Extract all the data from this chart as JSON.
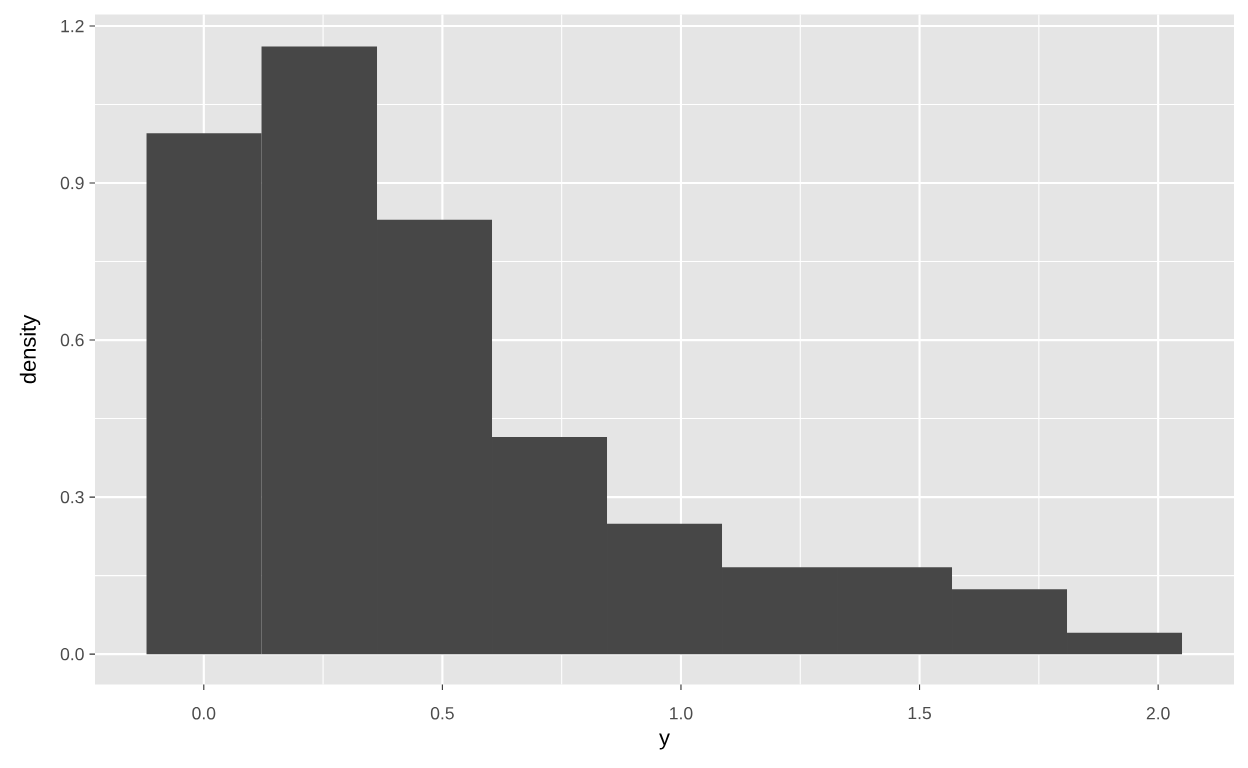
{
  "chart_data": {
    "type": "histogram",
    "xlabel": "y",
    "ylabel": "density",
    "bins": [
      -0.12,
      0.121,
      0.363,
      0.604,
      0.845,
      1.086,
      1.327,
      1.568,
      1.809,
      2.05
    ],
    "values": [
      0.995,
      1.161,
      0.83,
      0.415,
      0.249,
      0.166,
      0.166,
      0.124,
      0.041
    ],
    "color": "#474747",
    "xlim": [
      -0.228,
      2.159
    ],
    "ylim": [
      -0.058,
      1.222
    ],
    "xticks": [
      {
        "value": 0,
        "label": "0.0"
      },
      {
        "value": 0.5,
        "label": "0.5"
      },
      {
        "value": 1,
        "label": "1.0"
      },
      {
        "value": 1.5,
        "label": "1.5"
      },
      {
        "value": 2,
        "label": "2.0"
      }
    ],
    "yticks": [
      {
        "value": 0,
        "label": "0.0"
      },
      0.3,
      0.6,
      0.9,
      1.2
    ],
    "grid": true
  }
}
